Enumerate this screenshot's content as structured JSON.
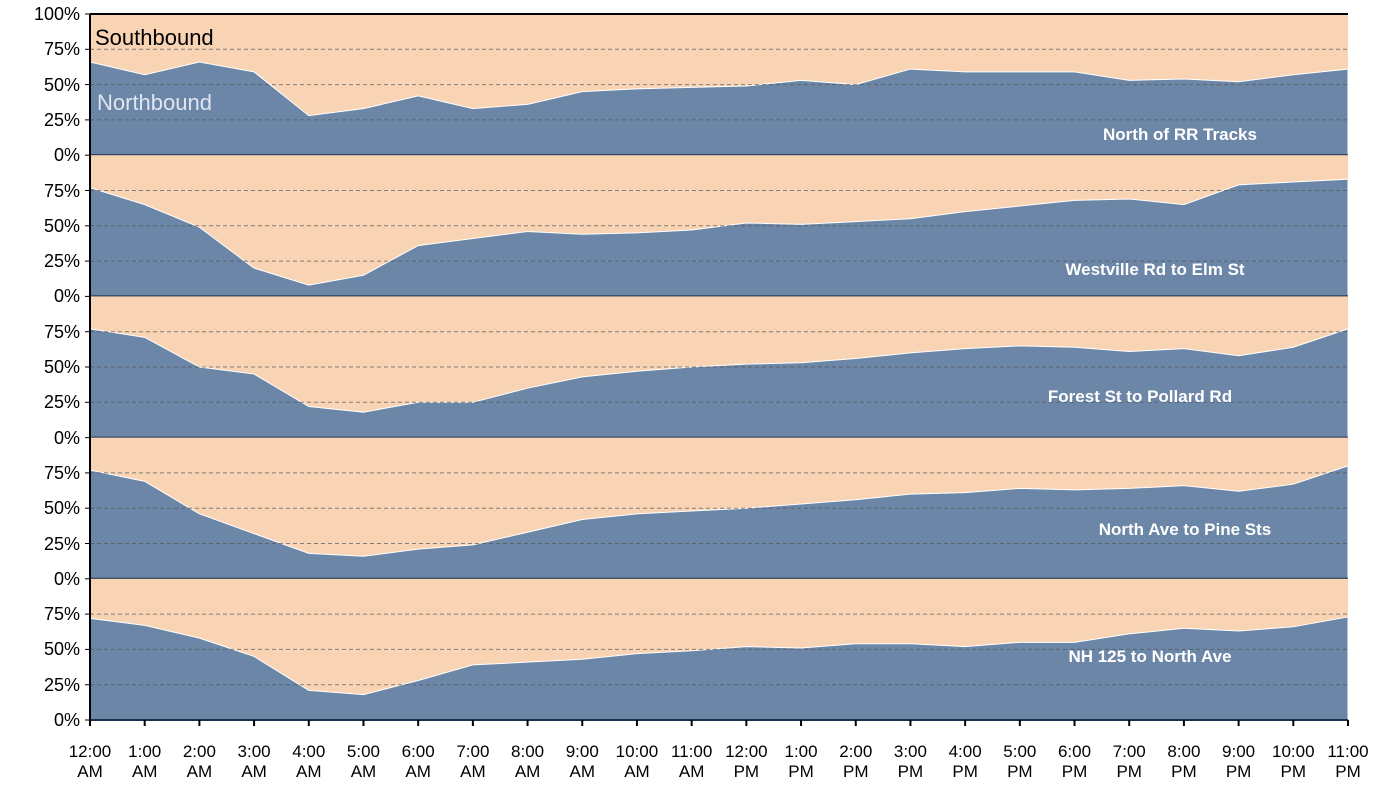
{
  "chart_data": {
    "type": "area",
    "series": [
      {
        "name": "Southbound",
        "color": "#f9d4b4"
      },
      {
        "name": "Northbound",
        "color": "#6b86a6"
      }
    ],
    "categories": [
      "12:00 AM",
      "1:00 AM",
      "2:00 AM",
      "3:00 AM",
      "4:00 AM",
      "5:00 AM",
      "6:00 AM",
      "7:00 AM",
      "8:00 AM",
      "9:00 AM",
      "10:00 AM",
      "11:00 AM",
      "12:00 PM",
      "1:00 PM",
      "2:00 PM",
      "3:00 PM",
      "4:00 PM",
      "5:00 PM",
      "6:00 PM",
      "7:00 PM",
      "8:00 PM",
      "9:00 PM",
      "10:00 PM",
      "11:00 PM"
    ],
    "ylim": [
      0,
      100
    ],
    "yticks": [
      {
        "value": 0,
        "label": "0%"
      },
      {
        "value": 25,
        "label": "25%"
      },
      {
        "value": 50,
        "label": "50%"
      },
      {
        "value": 75,
        "label": "75%"
      },
      {
        "value": 100,
        "label": "100%"
      }
    ],
    "grid": true,
    "panels": [
      {
        "label": "North of RR Tracks",
        "values": [
          66,
          57,
          66,
          59,
          28,
          33,
          42,
          33,
          36,
          45,
          47,
          48,
          49,
          53,
          50,
          61,
          59,
          59,
          59,
          53,
          54,
          52,
          57,
          61
        ]
      },
      {
        "label": "Westville Rd to Elm St",
        "values": [
          77,
          65,
          49,
          20,
          8,
          15,
          36,
          41,
          46,
          44,
          45,
          47,
          52,
          51,
          53,
          55,
          60,
          64,
          68,
          69,
          65,
          79,
          81,
          83
        ]
      },
      {
        "label": "Forest St to Pollard Rd",
        "values": [
          77,
          71,
          50,
          45,
          22,
          18,
          25,
          25,
          35,
          43,
          47,
          50,
          52,
          53,
          56,
          60,
          63,
          65,
          64,
          61,
          63,
          58,
          64,
          77
        ]
      },
      {
        "label": "North Ave to Pine Sts",
        "values": [
          77,
          69,
          46,
          32,
          18,
          16,
          21,
          24,
          33,
          42,
          46,
          48,
          50,
          53,
          56,
          60,
          61,
          64,
          63,
          64,
          66,
          62,
          67,
          80
        ]
      },
      {
        "label": "NH 125 to North Ave",
        "values": [
          72,
          67,
          58,
          45,
          21,
          18,
          28,
          39,
          41,
          43,
          47,
          49,
          52,
          51,
          54,
          54,
          52,
          55,
          55,
          61,
          65,
          63,
          66,
          73
        ]
      }
    ]
  }
}
